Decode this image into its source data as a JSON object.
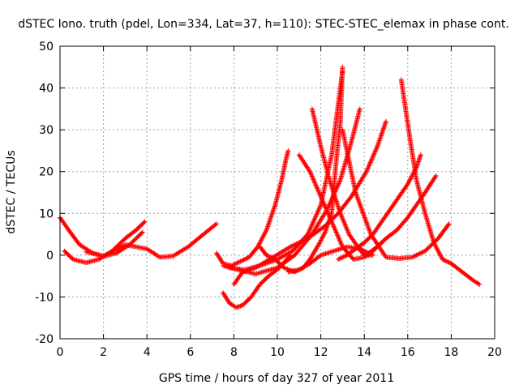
{
  "chart_data": {
    "type": "scatter",
    "title": "dSTEC Iono. truth (pdel, Lon=334, Lat=37, h=110): STEC-STEC_elemax in phase cont.",
    "xlabel": "GPS time / hours of day 327 of year 2011",
    "ylabel": "dSTEC  / TECUs",
    "xlim": [
      0,
      20
    ],
    "ylim": [
      -20,
      50
    ],
    "xticks": [
      "0",
      "2",
      "4",
      "6",
      "8",
      "10",
      "12",
      "14",
      "16",
      "18",
      "20"
    ],
    "yticks": [
      "-20",
      "-10",
      "0",
      "10",
      "20",
      "30",
      "40",
      "50"
    ],
    "grid": true,
    "marker": "plus",
    "color": "#ff0000",
    "series": [
      {
        "x": [
          0.0,
          0.4,
          0.9,
          1.5,
          2.0,
          2.6,
          3.2,
          3.8
        ],
        "values": [
          9,
          6,
          2.5,
          0.5,
          -0.3,
          0.5,
          2.5,
          5.5
        ]
      },
      {
        "x": [
          0.2,
          0.6,
          1.2,
          1.8,
          2.4,
          3.0,
          3.5,
          3.9
        ],
        "values": [
          1,
          -1,
          -1.8,
          -1,
          1,
          4,
          6,
          8
        ]
      },
      {
        "x": [
          1.2,
          2.0,
          3.0,
          4.0,
          4.6,
          5.2,
          5.9,
          6.6,
          7.2
        ],
        "values": [
          0.8,
          -0.2,
          2.5,
          1.5,
          -0.5,
          -0.2,
          2,
          5,
          7.5
        ]
      },
      {
        "x": [
          7.2,
          7.5,
          7.9,
          8.3,
          8.7,
          9.1,
          9.5,
          9.9,
          10.2,
          10.4,
          10.5
        ],
        "values": [
          0.5,
          -2,
          -2.5,
          -1.5,
          -0.5,
          2,
          6,
          12,
          18,
          23,
          25
        ]
      },
      {
        "x": [
          7.5,
          7.8,
          8.1,
          8.4,
          8.8,
          9.2,
          9.6,
          10.1,
          10.6
        ],
        "values": [
          -9,
          -11.5,
          -12.5,
          -12,
          -10,
          -7,
          -5,
          -3,
          0
        ]
      },
      {
        "x": [
          8.0,
          8.4,
          9.0,
          9.8,
          10.6,
          11.4,
          12.2,
          12.8,
          13.4,
          14.1,
          14.6,
          15.0
        ],
        "values": [
          -7,
          -4,
          -3,
          -0.5,
          2,
          4,
          7,
          10,
          14,
          20,
          26,
          32
        ]
      },
      {
        "x": [
          7.5,
          8.2,
          9.0,
          10.0,
          10.8,
          11.6,
          12.3,
          12.9,
          13.4,
          13.8
        ],
        "values": [
          -2.5,
          -3.5,
          -4.5,
          -3,
          0,
          5,
          11,
          18,
          27,
          35
        ]
      },
      {
        "x": [
          7.8,
          8.5,
          9.2,
          10.0,
          10.7,
          11.4,
          12.0,
          12.5,
          12.8,
          13.0
        ],
        "values": [
          -3,
          -3.5,
          -2.5,
          -1,
          1,
          5,
          12,
          24,
          36,
          44
        ]
      },
      {
        "x": [
          9.2,
          9.5,
          9.9,
          10.3,
          10.8,
          11.2,
          11.5,
          11.9,
          12.2,
          12.5,
          12.7,
          12.9,
          13.0
        ],
        "values": [
          2,
          0,
          -1,
          -3,
          -4,
          -3,
          -1,
          2.5,
          5.5,
          10,
          22,
          32,
          45
        ]
      },
      {
        "x": [
          11.6,
          12.0,
          12.4,
          12.9,
          13.3,
          13.7,
          14.0,
          14.3
        ],
        "values": [
          35,
          26,
          18,
          10,
          5,
          2,
          0,
          0
        ]
      },
      {
        "x": [
          11.0,
          11.5,
          12.0,
          12.5,
          13.0,
          13.5,
          14.0,
          14.4,
          14.8
        ],
        "values": [
          24,
          20,
          14,
          8,
          2,
          -1,
          -0.5,
          1,
          3
        ]
      },
      {
        "x": [
          14.2,
          14.6,
          15.0,
          15.5,
          16.0,
          16.4,
          16.8,
          17.3
        ],
        "values": [
          0.5,
          2,
          4,
          6,
          9,
          12,
          15,
          19
        ]
      },
      {
        "x": [
          12.8,
          13.2,
          13.6,
          14.0,
          14.4,
          14.8,
          15.2,
          15.6,
          16.0,
          16.4,
          16.6
        ],
        "values": [
          -1,
          0,
          1.5,
          3,
          5,
          8,
          11,
          14,
          17,
          21,
          24
        ]
      },
      {
        "x": [
          15.7,
          15.9,
          16.1,
          16.4,
          16.8,
          17.2,
          17.6,
          18.0,
          18.5,
          19.0,
          19.3
        ],
        "values": [
          42,
          35,
          28,
          18,
          10,
          3,
          -1,
          -2,
          -4,
          -6,
          -7
        ]
      },
      {
        "x": [
          13.0,
          13.6,
          14.3,
          15.0,
          15.6,
          16.2,
          16.8,
          17.4,
          17.9
        ],
        "values": [
          30,
          15,
          5,
          -0.5,
          -0.8,
          -0.5,
          1,
          4,
          7.5
        ]
      },
      {
        "x": [
          10.5,
          11.0,
          11.5,
          12.0,
          12.6,
          13.2,
          13.8,
          14.4
        ],
        "values": [
          -4,
          -3.5,
          -2,
          0,
          1,
          2,
          1.5,
          0
        ]
      }
    ]
  }
}
